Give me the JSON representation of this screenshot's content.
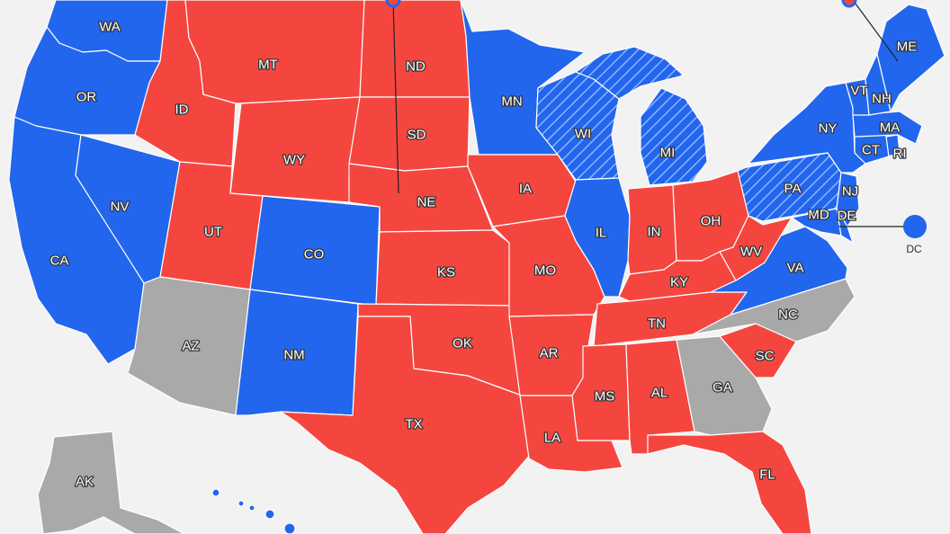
{
  "colors": {
    "dem": "#2266ee",
    "rep": "#f4463f",
    "tossup": "#a9a9a9",
    "background": "#f2f2f2",
    "hatch": "#8fb3ff"
  },
  "states": [
    {
      "id": "WA",
      "label": "WA",
      "rating": "dem"
    },
    {
      "id": "OR",
      "label": "OR",
      "rating": "dem"
    },
    {
      "id": "CA",
      "label": "CA",
      "rating": "dem"
    },
    {
      "id": "NV",
      "label": "NV",
      "rating": "dem"
    },
    {
      "id": "ID",
      "label": "ID",
      "rating": "rep"
    },
    {
      "id": "MT",
      "label": "MT",
      "rating": "rep"
    },
    {
      "id": "WY",
      "label": "WY",
      "rating": "rep"
    },
    {
      "id": "UT",
      "label": "UT",
      "rating": "rep"
    },
    {
      "id": "AZ",
      "label": "AZ",
      "rating": "tossup"
    },
    {
      "id": "CO",
      "label": "CO",
      "rating": "dem"
    },
    {
      "id": "NM",
      "label": "NM",
      "rating": "dem"
    },
    {
      "id": "ND",
      "label": "ND",
      "rating": "rep"
    },
    {
      "id": "SD",
      "label": "SD",
      "rating": "rep"
    },
    {
      "id": "NE",
      "label": "NE",
      "rating": "rep"
    },
    {
      "id": "KS",
      "label": "KS",
      "rating": "rep"
    },
    {
      "id": "OK",
      "label": "OK",
      "rating": "rep"
    },
    {
      "id": "TX",
      "label": "TX",
      "rating": "rep"
    },
    {
      "id": "MN",
      "label": "MN",
      "rating": "dem"
    },
    {
      "id": "IA",
      "label": "IA",
      "rating": "rep"
    },
    {
      "id": "MO",
      "label": "MO",
      "rating": "rep"
    },
    {
      "id": "AR",
      "label": "AR",
      "rating": "rep"
    },
    {
      "id": "LA",
      "label": "LA",
      "rating": "rep"
    },
    {
      "id": "WI",
      "label": "WI",
      "rating": "lean-dem"
    },
    {
      "id": "IL",
      "label": "IL",
      "rating": "dem"
    },
    {
      "id": "MI",
      "label": "MI",
      "rating": "lean-dem"
    },
    {
      "id": "IN",
      "label": "IN",
      "rating": "rep"
    },
    {
      "id": "OH",
      "label": "OH",
      "rating": "rep"
    },
    {
      "id": "KY",
      "label": "KY",
      "rating": "rep"
    },
    {
      "id": "TN",
      "label": "TN",
      "rating": "rep"
    },
    {
      "id": "MS",
      "label": "MS",
      "rating": "rep"
    },
    {
      "id": "AL",
      "label": "AL",
      "rating": "rep"
    },
    {
      "id": "GA",
      "label": "GA",
      "rating": "tossup"
    },
    {
      "id": "FL",
      "label": "FL",
      "rating": "rep"
    },
    {
      "id": "SC",
      "label": "SC",
      "rating": "rep"
    },
    {
      "id": "NC",
      "label": "NC",
      "rating": "tossup"
    },
    {
      "id": "VA",
      "label": "VA",
      "rating": "dem"
    },
    {
      "id": "WV",
      "label": "WV",
      "rating": "rep"
    },
    {
      "id": "PA",
      "label": "PA",
      "rating": "lean-dem"
    },
    {
      "id": "NY",
      "label": "NY",
      "rating": "dem"
    },
    {
      "id": "NJ",
      "label": "NJ",
      "rating": "dem"
    },
    {
      "id": "MD",
      "label": "MD",
      "rating": "dem"
    },
    {
      "id": "DE",
      "label": "DE",
      "rating": "dem"
    },
    {
      "id": "CT",
      "label": "CT",
      "rating": "dem"
    },
    {
      "id": "RI",
      "label": "RI",
      "rating": "dem"
    },
    {
      "id": "MA",
      "label": "MA",
      "rating": "dem"
    },
    {
      "id": "VT",
      "label": "VT",
      "rating": "dem"
    },
    {
      "id": "NH",
      "label": "NH",
      "rating": "dem"
    },
    {
      "id": "ME",
      "label": "ME",
      "rating": "dem"
    },
    {
      "id": "AK",
      "label": "AK",
      "rating": "tossup"
    },
    {
      "id": "HI",
      "label": "",
      "rating": "dem"
    },
    {
      "id": "DC",
      "label": "DC",
      "rating": "dem"
    }
  ]
}
